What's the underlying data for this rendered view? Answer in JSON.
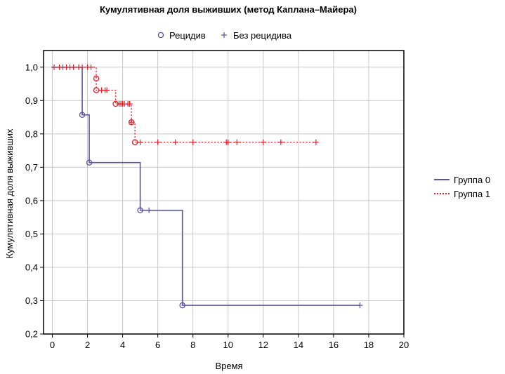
{
  "chart_data": {
    "type": "line",
    "title": "Кумулятивная доля выживших (метод Каплана–Майера)",
    "xlabel": "Время",
    "ylabel": "Кумулятивная доля выживших",
    "xlim": [
      -0.5,
      20
    ],
    "ylim": [
      0.2,
      1.05
    ],
    "x_ticks": [
      0,
      2,
      4,
      6,
      8,
      10,
      12,
      14,
      16,
      18,
      20
    ],
    "y_ticks": [
      0.2,
      0.3,
      0.4,
      0.5,
      0.6,
      0.7,
      0.8,
      0.9,
      1.0
    ],
    "x_tick_labels": [
      "0",
      "2",
      "4",
      "6",
      "8",
      "10",
      "12",
      "14",
      "16",
      "18",
      "20"
    ],
    "y_tick_labels": [
      "0,2",
      "0,3",
      "0,4",
      "0,5",
      "0,6",
      "0,7",
      "0,8",
      "0,9",
      "1,0"
    ],
    "grid": true,
    "marker_legend": {
      "placement": "top",
      "items": [
        {
          "symbol": "circle",
          "label": "Рецидив"
        },
        {
          "symbol": "plus",
          "label": "Без рецидива"
        }
      ]
    },
    "legend": {
      "placement": "right"
    },
    "series": [
      {
        "name": "Группа 0",
        "color": "#5a52a5",
        "line_style": "solid",
        "steps": [
          [
            0,
            1.0
          ],
          [
            1.7,
            0.857
          ],
          [
            2.1,
            0.714
          ],
          [
            5.0,
            0.571
          ],
          [
            7.4,
            0.286
          ],
          [
            17.5,
            0.286
          ]
        ],
        "events": [
          [
            1.7,
            0.857
          ],
          [
            2.1,
            0.714
          ],
          [
            5.0,
            0.571
          ],
          [
            7.4,
            0.286
          ]
        ],
        "censored": [
          [
            5.5,
            0.571
          ],
          [
            17.5,
            0.286
          ]
        ]
      },
      {
        "name": "Группа 1",
        "color": "#e0202a",
        "line_style": "dotted",
        "steps": [
          [
            0,
            1.0
          ],
          [
            2.5,
            0.966
          ],
          [
            2.5,
            0.931
          ],
          [
            3.6,
            0.89
          ],
          [
            4.5,
            0.835
          ],
          [
            4.7,
            0.775
          ],
          [
            15.0,
            0.775
          ]
        ],
        "events": [
          [
            2.5,
            0.966
          ],
          [
            2.5,
            0.931
          ],
          [
            3.6,
            0.89
          ],
          [
            4.5,
            0.835
          ],
          [
            4.7,
            0.775
          ]
        ],
        "censored": [
          [
            0.1,
            1.0
          ],
          [
            0.4,
            1.0
          ],
          [
            0.6,
            1.0
          ],
          [
            0.8,
            1.0
          ],
          [
            1.0,
            1.0
          ],
          [
            1.2,
            1.0
          ],
          [
            1.5,
            1.0
          ],
          [
            1.7,
            1.0
          ],
          [
            2.0,
            1.0
          ],
          [
            2.2,
            1.0
          ],
          [
            2.8,
            0.931
          ],
          [
            3.0,
            0.931
          ],
          [
            3.1,
            0.931
          ],
          [
            3.8,
            0.89
          ],
          [
            3.9,
            0.89
          ],
          [
            4.0,
            0.89
          ],
          [
            4.1,
            0.89
          ],
          [
            4.3,
            0.89
          ],
          [
            4.4,
            0.89
          ],
          [
            4.5,
            0.835
          ],
          [
            5.0,
            0.775
          ],
          [
            6.0,
            0.775
          ],
          [
            7.0,
            0.775
          ],
          [
            8.0,
            0.775
          ],
          [
            9.9,
            0.775
          ],
          [
            10.0,
            0.775
          ],
          [
            10.5,
            0.775
          ],
          [
            12.0,
            0.775
          ],
          [
            13.0,
            0.775
          ],
          [
            15.0,
            0.775
          ]
        ]
      }
    ]
  }
}
